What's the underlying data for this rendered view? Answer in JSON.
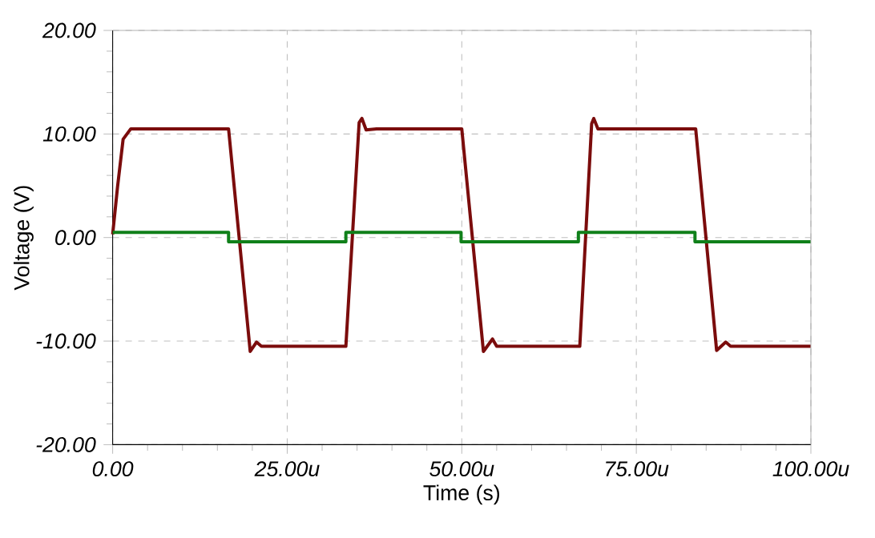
{
  "chart_data": {
    "type": "line",
    "xlabel": "Time (s)",
    "ylabel": "Voltage (V)",
    "xlim": [
      0,
      100
    ],
    "ylim": [
      -20,
      20
    ],
    "xticks": [
      {
        "value": 0,
        "label": "0.00"
      },
      {
        "value": 25,
        "label": "25.00u"
      },
      {
        "value": 50,
        "label": "50.00u"
      },
      {
        "value": 75,
        "label": "75.00u"
      },
      {
        "value": 100,
        "label": "100.00u"
      }
    ],
    "yticks": [
      {
        "value": -20,
        "label": "-20.00"
      },
      {
        "value": -10,
        "label": "-10.00"
      },
      {
        "value": 0,
        "label": "0.00"
      },
      {
        "value": 10,
        "label": "10.00"
      },
      {
        "value": 20,
        "label": "20.00"
      }
    ],
    "grid": true,
    "marker": "none",
    "line_style": "solid",
    "series": [
      {
        "color": "#7b0c0c",
        "x": [
          0,
          0.7,
          1.5,
          2.6,
          16.6,
          19.7,
          20.6,
          21.3,
          33.4,
          35.3,
          35.7,
          36.3,
          37.8,
          50.0,
          53.1,
          54.4,
          55.0,
          66.9,
          68.6,
          68.9,
          69.5,
          83.5,
          86.5,
          87.8,
          88.5,
          100
        ],
        "values": [
          0.3,
          4.9,
          9.5,
          10.5,
          10.5,
          -11.0,
          -10.1,
          -10.5,
          -10.5,
          11.1,
          11.5,
          10.4,
          10.5,
          10.5,
          -11.0,
          -9.8,
          -10.5,
          -10.5,
          11.0,
          11.5,
          10.5,
          10.5,
          -10.9,
          -10.1,
          -10.5,
          -10.5
        ]
      },
      {
        "color": "#10801a",
        "x": [
          0,
          16.6,
          16.6,
          33.4,
          33.4,
          49.9,
          49.9,
          66.7,
          66.7,
          83.4,
          83.4,
          100
        ],
        "values": [
          0.5,
          0.5,
          -0.4,
          -0.4,
          0.5,
          0.5,
          -0.4,
          -0.4,
          0.5,
          0.5,
          -0.4,
          -0.4
        ]
      }
    ]
  }
}
